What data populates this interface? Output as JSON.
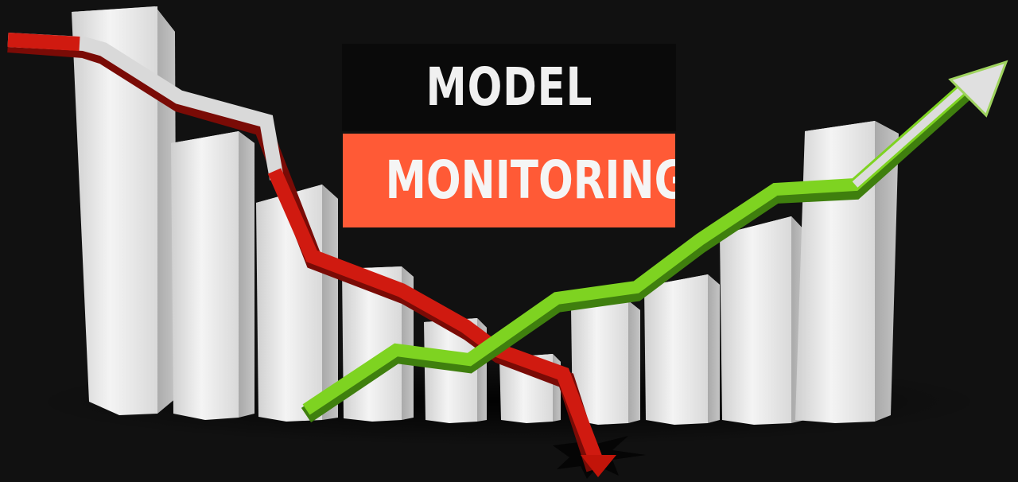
{
  "title": {
    "line1": "MODEL",
    "line2": "MONITORING"
  },
  "colors": {
    "background": "#111111",
    "title_line1_bg": "#0a0a0a",
    "title_line2_bg": "#ff5a36",
    "bar_color": "#e8e8e8",
    "falling_arrow": "#d01a10",
    "rising_arrow": "#7ed321"
  },
  "icons": {
    "falling_arrow": "falling-red-arrow-icon",
    "rising_arrow": "rising-green-arrow-icon",
    "impact": "ground-crack-icon"
  }
}
